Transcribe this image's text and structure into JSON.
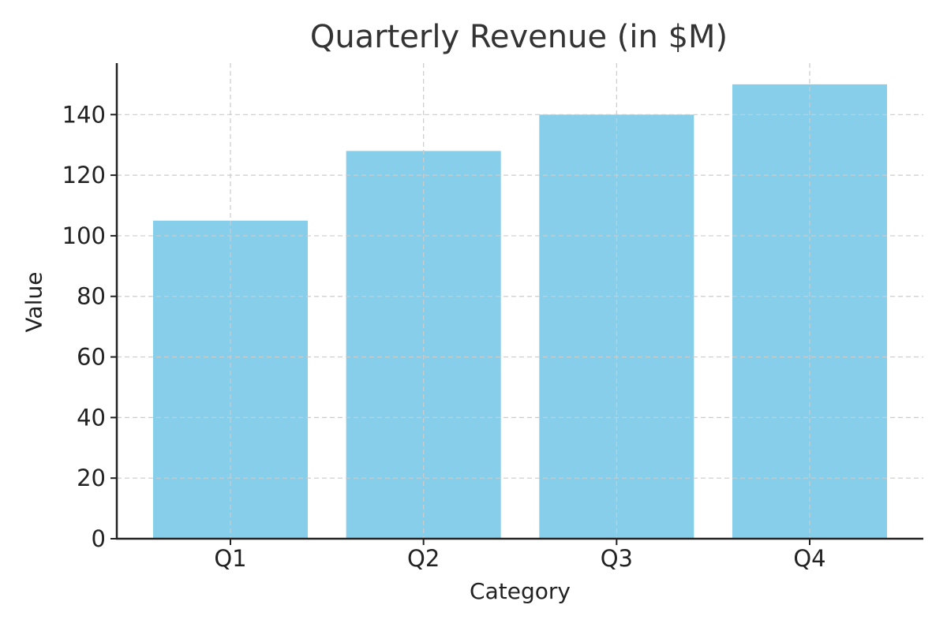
{
  "chart_data": {
    "type": "bar",
    "title": "Quarterly Revenue (in $M)",
    "xlabel": "Category",
    "ylabel": "Value",
    "categories": [
      "Q1",
      "Q2",
      "Q3",
      "Q4"
    ],
    "values": [
      105,
      128,
      140,
      150
    ],
    "ylim": [
      0,
      157
    ],
    "yticks": [
      0,
      20,
      40,
      60,
      80,
      100,
      120,
      140
    ],
    "grid": true,
    "bar_color": "#87CEEB"
  }
}
